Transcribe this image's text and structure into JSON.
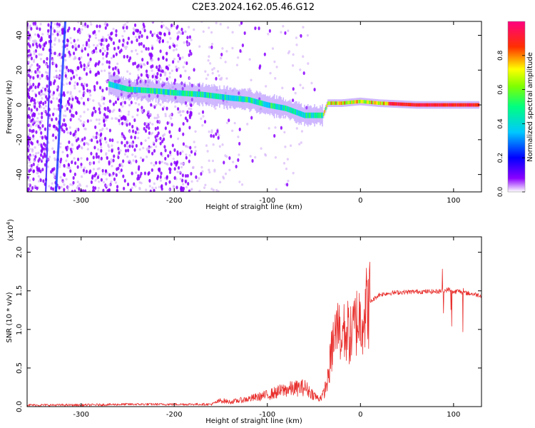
{
  "title": "C2E3.2024.162.05.46.G12",
  "chart_data": [
    {
      "type": "heatmap",
      "xlabel": "Height of straight line (km)",
      "ylabel": "Frequency (Hz)",
      "xlim": [
        -358,
        130
      ],
      "ylim": [
        -50,
        48
      ],
      "xticks": [
        -300,
        -200,
        -100,
        0,
        100
      ],
      "yticks": [
        -40,
        -20,
        0,
        20,
        40
      ],
      "colorbar": {
        "label": "Normalized spectral amplitude",
        "range": [
          0,
          1
        ],
        "ticks": [
          0.0,
          0.2,
          0.4,
          0.6,
          0.8
        ],
        "tick_labels": [
          "0.0",
          "0.2",
          "0.4",
          "0.6",
          "0.8"
        ]
      },
      "ridge": [
        {
          "x": -270,
          "y": 12
        },
        {
          "x": -250,
          "y": 9
        },
        {
          "x": -220,
          "y": 8
        },
        {
          "x": -200,
          "y": 7
        },
        {
          "x": -170,
          "y": 6
        },
        {
          "x": -140,
          "y": 4
        },
        {
          "x": -120,
          "y": 3
        },
        {
          "x": -100,
          "y": 0
        },
        {
          "x": -80,
          "y": -2
        },
        {
          "x": -60,
          "y": -6
        },
        {
          "x": -40,
          "y": -6
        },
        {
          "x": -35,
          "y": 1
        },
        {
          "x": -20,
          "y": 1
        },
        {
          "x": 0,
          "y": 2
        },
        {
          "x": 20,
          "y": 1
        },
        {
          "x": 60,
          "y": 0
        },
        {
          "x": 100,
          "y": 0
        },
        {
          "x": 128,
          "y": 0
        }
      ],
      "tracks": [
        {
          "x_start": -338,
          "x_end": -332,
          "y_start": -50,
          "y_end": 48
        },
        {
          "x_start": -327,
          "x_end": -317,
          "y_start": -50,
          "y_end": 48
        }
      ]
    },
    {
      "type": "line",
      "xlabel": "Height of straight line (km)",
      "ylabel": "SNR (10 * v/v)",
      "y_multiplier": "(x10",
      "y_multiplier_exp": "4",
      "y_multiplier_close": ")",
      "xlim": [
        -358,
        130
      ],
      "ylim": [
        0,
        2.2
      ],
      "xticks": [
        -300,
        -200,
        -100,
        0,
        100
      ],
      "yticks": [
        0.0,
        0.5,
        1.0,
        1.5,
        2.0
      ],
      "ytick_labels": [
        "0.0",
        "0.5",
        "1.0",
        "1.5",
        "2.0"
      ],
      "color": "#e8302e",
      "series": [
        {
          "x": [
            -358,
            -300,
            -250,
            -200,
            -160,
            -150,
            -140,
            -120,
            -100,
            -80,
            -60,
            -45,
            -40,
            -35,
            -30,
            -25,
            -20,
            -15,
            -10,
            -5,
            0,
            10,
            20,
            30,
            40,
            60,
            80,
            90,
            95,
            100,
            105,
            110,
            120,
            130
          ],
          "values": [
            0.02,
            0.02,
            0.03,
            0.03,
            0.03,
            0.08,
            0.06,
            0.1,
            0.15,
            0.22,
            0.25,
            0.1,
            0.15,
            0.35,
            0.8,
            1.0,
            0.9,
            1.0,
            0.9,
            1.1,
            1.15,
            1.35,
            1.45,
            1.47,
            1.48,
            1.49,
            1.49,
            1.5,
            1.52,
            1.48,
            1.5,
            1.48,
            1.46,
            1.44
          ]
        }
      ]
    }
  ]
}
